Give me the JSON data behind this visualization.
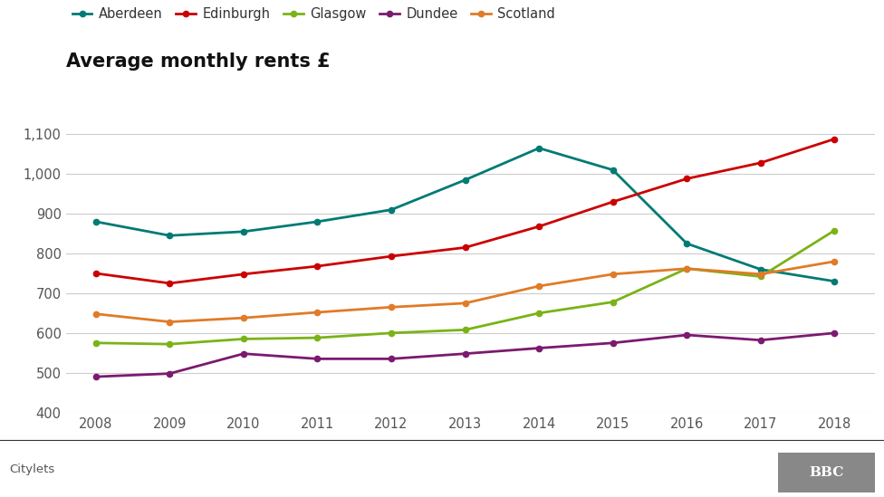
{
  "title": "Average monthly rents £",
  "years": [
    2008,
    2009,
    2010,
    2011,
    2012,
    2013,
    2014,
    2015,
    2016,
    2017,
    2018
  ],
  "series": {
    "Aberdeen": [
      880,
      845,
      855,
      880,
      910,
      985,
      1065,
      1010,
      825,
      760,
      730
    ],
    "Edinburgh": [
      750,
      725,
      748,
      768,
      793,
      815,
      868,
      930,
      988,
      1028,
      1088
    ],
    "Glasgow": [
      575,
      572,
      585,
      588,
      600,
      608,
      650,
      678,
      762,
      742,
      858
    ],
    "Dundee": [
      490,
      498,
      548,
      535,
      535,
      548,
      562,
      575,
      595,
      582,
      600
    ],
    "Scotland": [
      648,
      628,
      638,
      652,
      665,
      675,
      718,
      748,
      762,
      748,
      780
    ]
  },
  "colors": {
    "Aberdeen": "#007a75",
    "Edinburgh": "#cc0000",
    "Glasgow": "#7ab317",
    "Dundee": "#7b1a6e",
    "Scotland": "#e07b27"
  },
  "ylim": [
    400,
    1150
  ],
  "yticks": [
    400,
    500,
    600,
    700,
    800,
    900,
    1000,
    1100
  ],
  "ytick_labels": [
    "400",
    "500",
    "600",
    "700",
    "800",
    "900",
    "1,000",
    "1,100"
  ],
  "source": "Citylets",
  "background_color": "#ffffff",
  "grid_color": "#cccccc",
  "legend_order": [
    "Aberdeen",
    "Edinburgh",
    "Glasgow",
    "Dundee",
    "Scotland"
  ]
}
